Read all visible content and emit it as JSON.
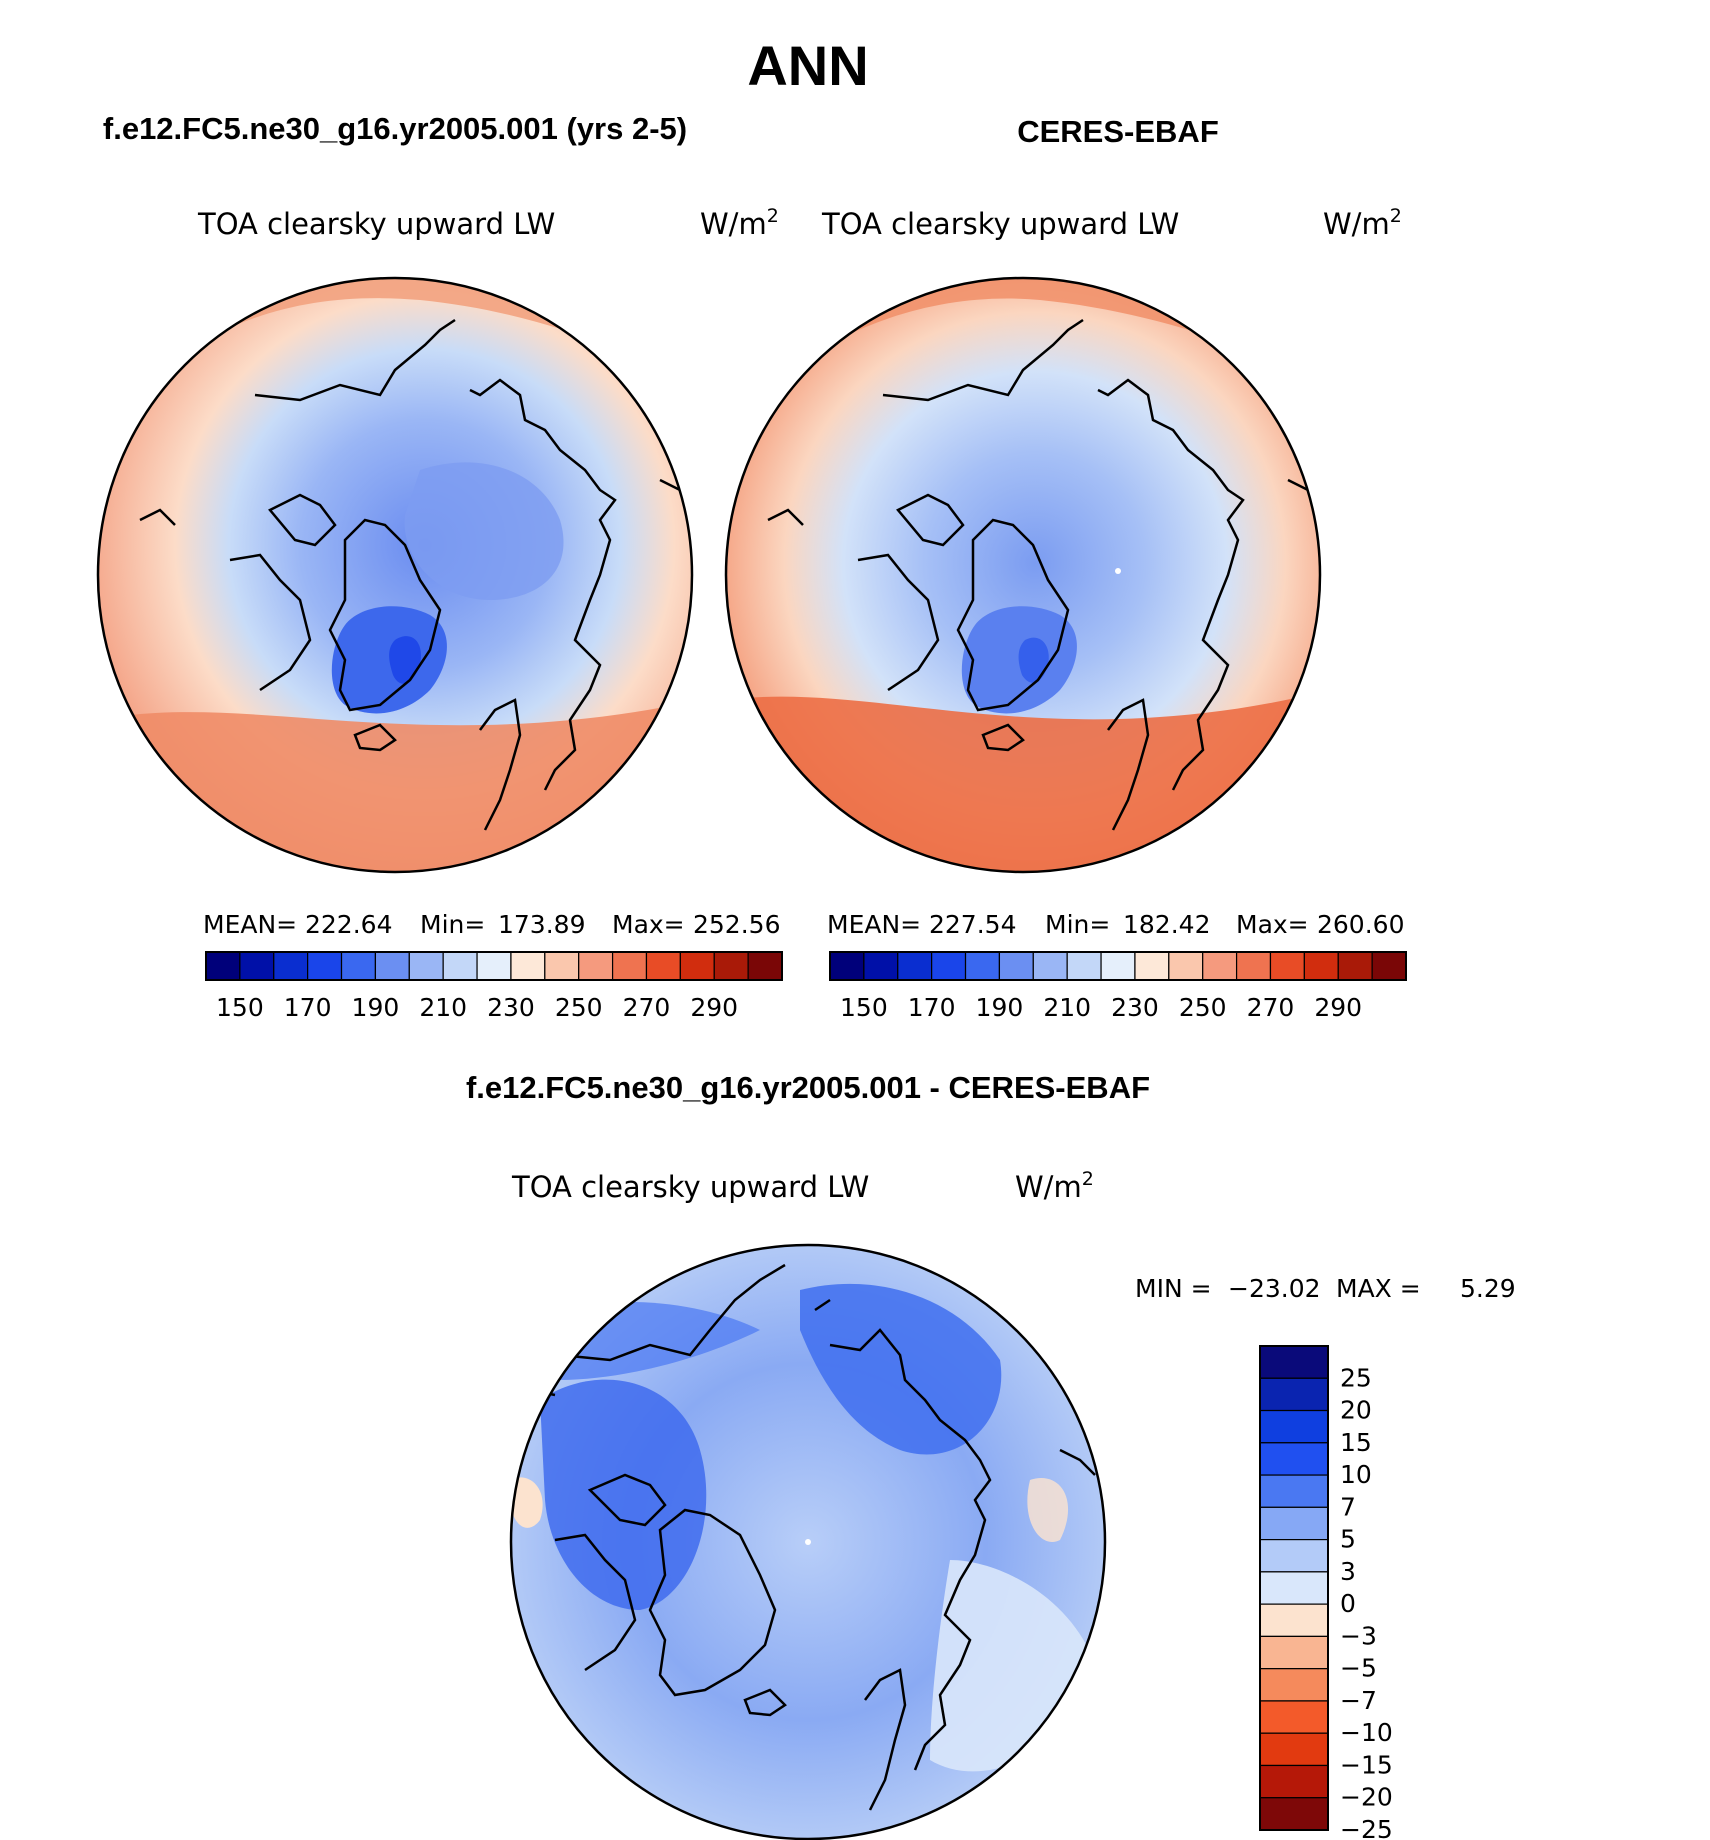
{
  "main_title": "ANN",
  "panels": [
    {
      "case_title": "f.e12.FC5.ne30_g16.yr2005.001 (yrs 2-5)",
      "variable": "TOA clearsky upward LW",
      "units": "W/m",
      "units_exp": "2",
      "stats": {
        "mean_label": "MEAN=",
        "mean": "222.64",
        "min_label": "Min=",
        "min": "173.89",
        "max_label": "Max=",
        "max": "252.56"
      }
    },
    {
      "case_title": "CERES-EBAF",
      "variable": "TOA clearsky upward LW",
      "units": "W/m",
      "units_exp": "2",
      "stats": {
        "mean_label": "MEAN=",
        "mean": "227.54",
        "min_label": "Min=",
        "min": "182.42",
        "max_label": "Max=",
        "max": "260.60"
      }
    }
  ],
  "diff_panel": {
    "title": "f.e12.FC5.ne30_g16.yr2005.001 - CERES-EBAF",
    "variable": "TOA clearsky upward LW",
    "units": "W/m",
    "units_exp": "2",
    "min_label": "MIN =",
    "min": "−23.02",
    "max_label": "MAX =",
    "max": "5.29"
  },
  "abs_colorbar": {
    "colors": [
      "#00007a",
      "#0010a8",
      "#0a2ed0",
      "#1a45ea",
      "#3a68f0",
      "#6b8ff2",
      "#9ab6f5",
      "#c3d7f8",
      "#e5effb",
      "#fde8d8",
      "#fac7ad",
      "#f59a7e",
      "#ef7350",
      "#e84c26",
      "#d12d0e",
      "#a91a08",
      "#7a0606"
    ],
    "labels": [
      "150",
      "170",
      "190",
      "210",
      "230",
      "250",
      "270",
      "290"
    ]
  },
  "diff_colorbar": {
    "colors": [
      "#0a0a7a",
      "#0a24b0",
      "#0f3fe0",
      "#2050f0",
      "#4a78f2",
      "#86a8f5",
      "#b3cbf8",
      "#d9e7fb",
      "#fce3cf",
      "#f9b592",
      "#f58a5c",
      "#f35a2a",
      "#e23a10",
      "#b51808",
      "#7e0808"
    ],
    "labels": [
      "25",
      "20",
      "15",
      "10",
      "7",
      "5",
      "3",
      "0",
      "−3",
      "−5",
      "−7",
      "−10",
      "−15",
      "−20",
      "−25"
    ]
  }
}
